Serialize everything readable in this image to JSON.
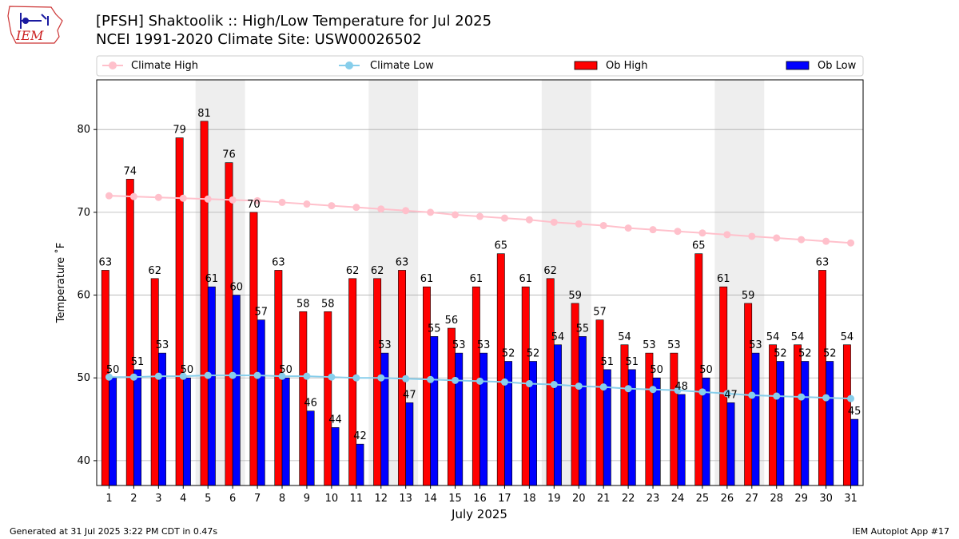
{
  "header": {
    "title": "[PFSH] Shaktoolik :: High/Low Temperature for Jul 2025",
    "subtitle": "NCEI 1991-2020 Climate Site: USW00026502",
    "logo_text": "IEM"
  },
  "footer": {
    "generated": "Generated at 31 Jul 2025 3:22 PM CDT in 0.47s",
    "app": "IEM Autoplot App #17"
  },
  "colors": {
    "ob_high": "#ff0000",
    "ob_low": "#0000ff",
    "climate_high": "#ffc0cb",
    "climate_low": "#87ceeb",
    "weekend_shade": "#eeeeee",
    "grid": "#b0b0b0"
  },
  "chart_data": {
    "type": "bar",
    "title": "[PFSH] Shaktoolik :: High/Low Temperature for Jul 2025",
    "xlabel": "July 2025",
    "ylabel": "Temperature ˚F",
    "ylim": [
      37,
      86
    ],
    "yticks": [
      40,
      50,
      60,
      70,
      80
    ],
    "grid": true,
    "legend_position": "top, above plot",
    "categories": [
      "1",
      "2",
      "3",
      "4",
      "5",
      "6",
      "7",
      "8",
      "9",
      "10",
      "11",
      "12",
      "13",
      "14",
      "15",
      "16",
      "17",
      "18",
      "19",
      "20",
      "21",
      "22",
      "23",
      "24",
      "25",
      "26",
      "27",
      "28",
      "29",
      "30",
      "31"
    ],
    "shaded_days": [
      [
        5,
        6
      ],
      [
        12,
        13
      ],
      [
        19,
        20
      ],
      [
        26,
        27
      ]
    ],
    "series": [
      {
        "name": "Ob High",
        "kind": "bar",
        "color": "#ff0000",
        "values": [
          63,
          74,
          62,
          79,
          81,
          76,
          70,
          63,
          58,
          58,
          62,
          62,
          63,
          61,
          56,
          61,
          65,
          61,
          62,
          59,
          57,
          54,
          53,
          53,
          65,
          61,
          59,
          54,
          54,
          63,
          54
        ]
      },
      {
        "name": "Ob Low",
        "kind": "bar",
        "color": "#0000ff",
        "values": [
          50,
          51,
          53,
          50,
          61,
          60,
          57,
          50,
          46,
          44,
          42,
          53,
          47,
          55,
          53,
          53,
          52,
          52,
          54,
          55,
          51,
          51,
          50,
          48,
          50,
          47,
          53,
          52,
          52,
          52,
          45
        ]
      },
      {
        "name": "Climate High",
        "kind": "line",
        "color": "#ffc0cb",
        "values": [
          72.0,
          71.9,
          71.8,
          71.7,
          71.6,
          71.5,
          71.4,
          71.2,
          71.0,
          70.8,
          70.6,
          70.4,
          70.2,
          70.0,
          69.7,
          69.5,
          69.3,
          69.1,
          68.8,
          68.6,
          68.4,
          68.1,
          67.9,
          67.7,
          67.5,
          67.3,
          67.1,
          66.9,
          66.7,
          66.5,
          66.3
        ]
      },
      {
        "name": "Climate Low",
        "kind": "line",
        "color": "#87ceeb",
        "values": [
          50.1,
          50.1,
          50.2,
          50.2,
          50.3,
          50.3,
          50.3,
          50.2,
          50.2,
          50.1,
          50.0,
          50.0,
          49.9,
          49.8,
          49.7,
          49.6,
          49.5,
          49.3,
          49.2,
          49.0,
          48.9,
          48.7,
          48.6,
          48.5,
          48.3,
          48.1,
          47.9,
          47.8,
          47.7,
          47.6,
          47.5
        ]
      }
    ],
    "legend": [
      "Climate High",
      "Climate Low",
      "Ob High",
      "Ob Low"
    ]
  }
}
